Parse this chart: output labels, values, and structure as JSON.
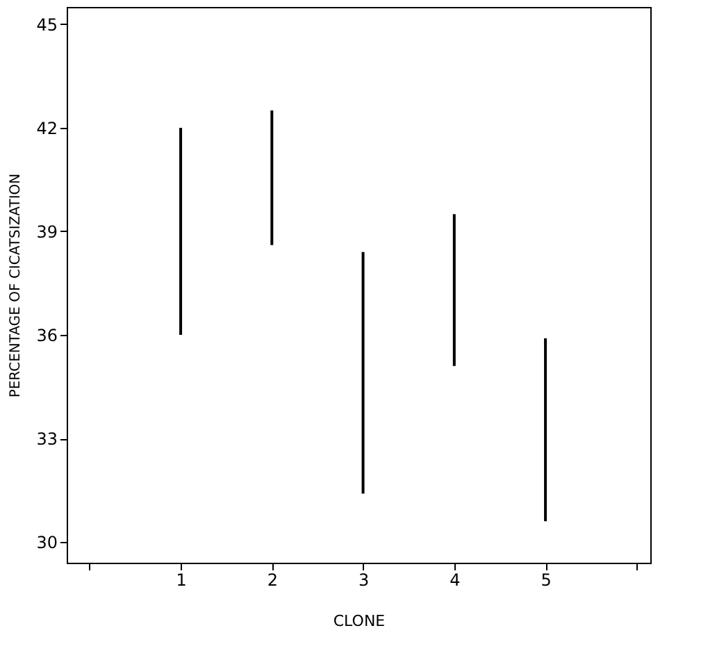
{
  "chart_data": {
    "type": "bar",
    "xlabel": "CLONE",
    "ylabel": "PERCENTAGE OF CICATSIZATION",
    "x": [
      1,
      2,
      3,
      4,
      5
    ],
    "base": [
      36.0,
      38.6,
      31.4,
      35.1,
      30.6
    ],
    "values": [
      6.0,
      3.9,
      7.0,
      4.4,
      5.3
    ],
    "color": "#000000",
    "xlim": [
      -0.25,
      6.15
    ],
    "xticks": [
      {
        "value": 0,
        "label": null
      },
      1,
      2,
      3,
      4,
      5,
      {
        "value": 6,
        "label": null
      }
    ],
    "ylim": [
      29.4,
      45.5
    ],
    "yticks": [
      30,
      33,
      36,
      39,
      42,
      45
    ],
    "grid": false
  }
}
